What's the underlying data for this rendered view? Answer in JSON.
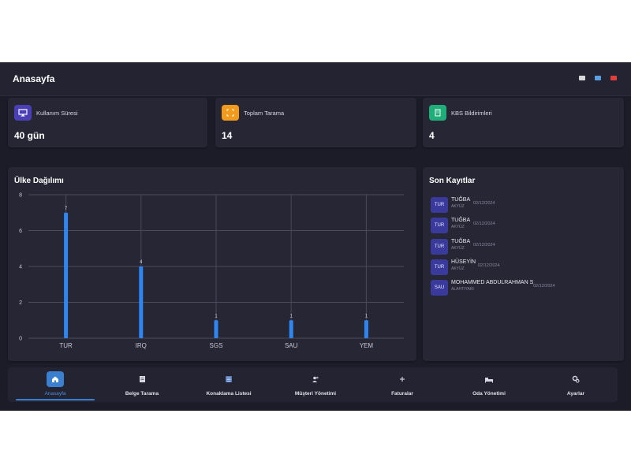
{
  "header": {
    "title": "Anasayfa"
  },
  "window_controls": [
    {
      "name": "minimize-icon",
      "color": "#d8d8d8"
    },
    {
      "name": "maximize-icon",
      "color": "#5aa0e0"
    },
    {
      "name": "close-icon",
      "color": "#e0403a"
    }
  ],
  "stats": [
    {
      "label": "Kullanım Süresi",
      "value": "40 gün",
      "icon": "monitor-icon",
      "color": "#4b3fb6"
    },
    {
      "label": "Toplam Tarama",
      "value": "14",
      "icon": "scan-icon",
      "color": "#f29a1b"
    },
    {
      "label": "KBS Bildirimleri",
      "value": "4",
      "icon": "building-icon",
      "color": "#1fae7a"
    }
  ],
  "chart_section": {
    "title": "Ülke Dağılımı"
  },
  "chart_data": {
    "type": "bar",
    "categories": [
      "TUR",
      "IRQ",
      "SGS",
      "SAU",
      "YEM"
    ],
    "values": [
      7,
      4,
      1,
      1,
      1
    ],
    "data_labels": [
      "7",
      "4",
      "1",
      "1",
      "1"
    ],
    "ylim": [
      0,
      8
    ],
    "yticks": [
      "0",
      "2",
      "4",
      "6",
      "8"
    ],
    "title": "",
    "xlabel": "",
    "ylabel": "",
    "grid": true,
    "bar_color": "#2f86f0"
  },
  "records_section": {
    "title": "Son Kayıtlar",
    "items": [
      {
        "badge": "TUR",
        "name": "TUĞBA",
        "sub": "AKYÜZ",
        "date": "02/12/2024"
      },
      {
        "badge": "TUR",
        "name": "TUĞBA",
        "sub": "AKYÜZ",
        "date": "02/12/2024"
      },
      {
        "badge": "TUR",
        "name": "TUĞBA",
        "sub": "AKYÜZ",
        "date": "02/12/2024"
      },
      {
        "badge": "TUR",
        "name": "HÜSEYİN",
        "sub": "AKYÜZ",
        "date": "02/12/2024"
      },
      {
        "badge": "SAU",
        "name": "MOHAMMED ABDULRAHMAN S",
        "sub": "ALAHTIYARI",
        "date": "02/12/2024"
      }
    ]
  },
  "nav": [
    {
      "label": "Anasayfa",
      "icon": "home-icon",
      "active": true
    },
    {
      "label": "Belge Tarama",
      "icon": "document-icon",
      "active": false
    },
    {
      "label": "Konaklama Listesi",
      "icon": "list-icon",
      "active": false
    },
    {
      "label": "Müşteri Yönetimi",
      "icon": "users-icon",
      "active": false
    },
    {
      "label": "Faturalar",
      "icon": "invoice-icon",
      "active": false
    },
    {
      "label": "Oda Yönetimi",
      "icon": "bed-icon",
      "active": false
    },
    {
      "label": "Ayarlar",
      "icon": "gear-icon",
      "active": false
    }
  ]
}
